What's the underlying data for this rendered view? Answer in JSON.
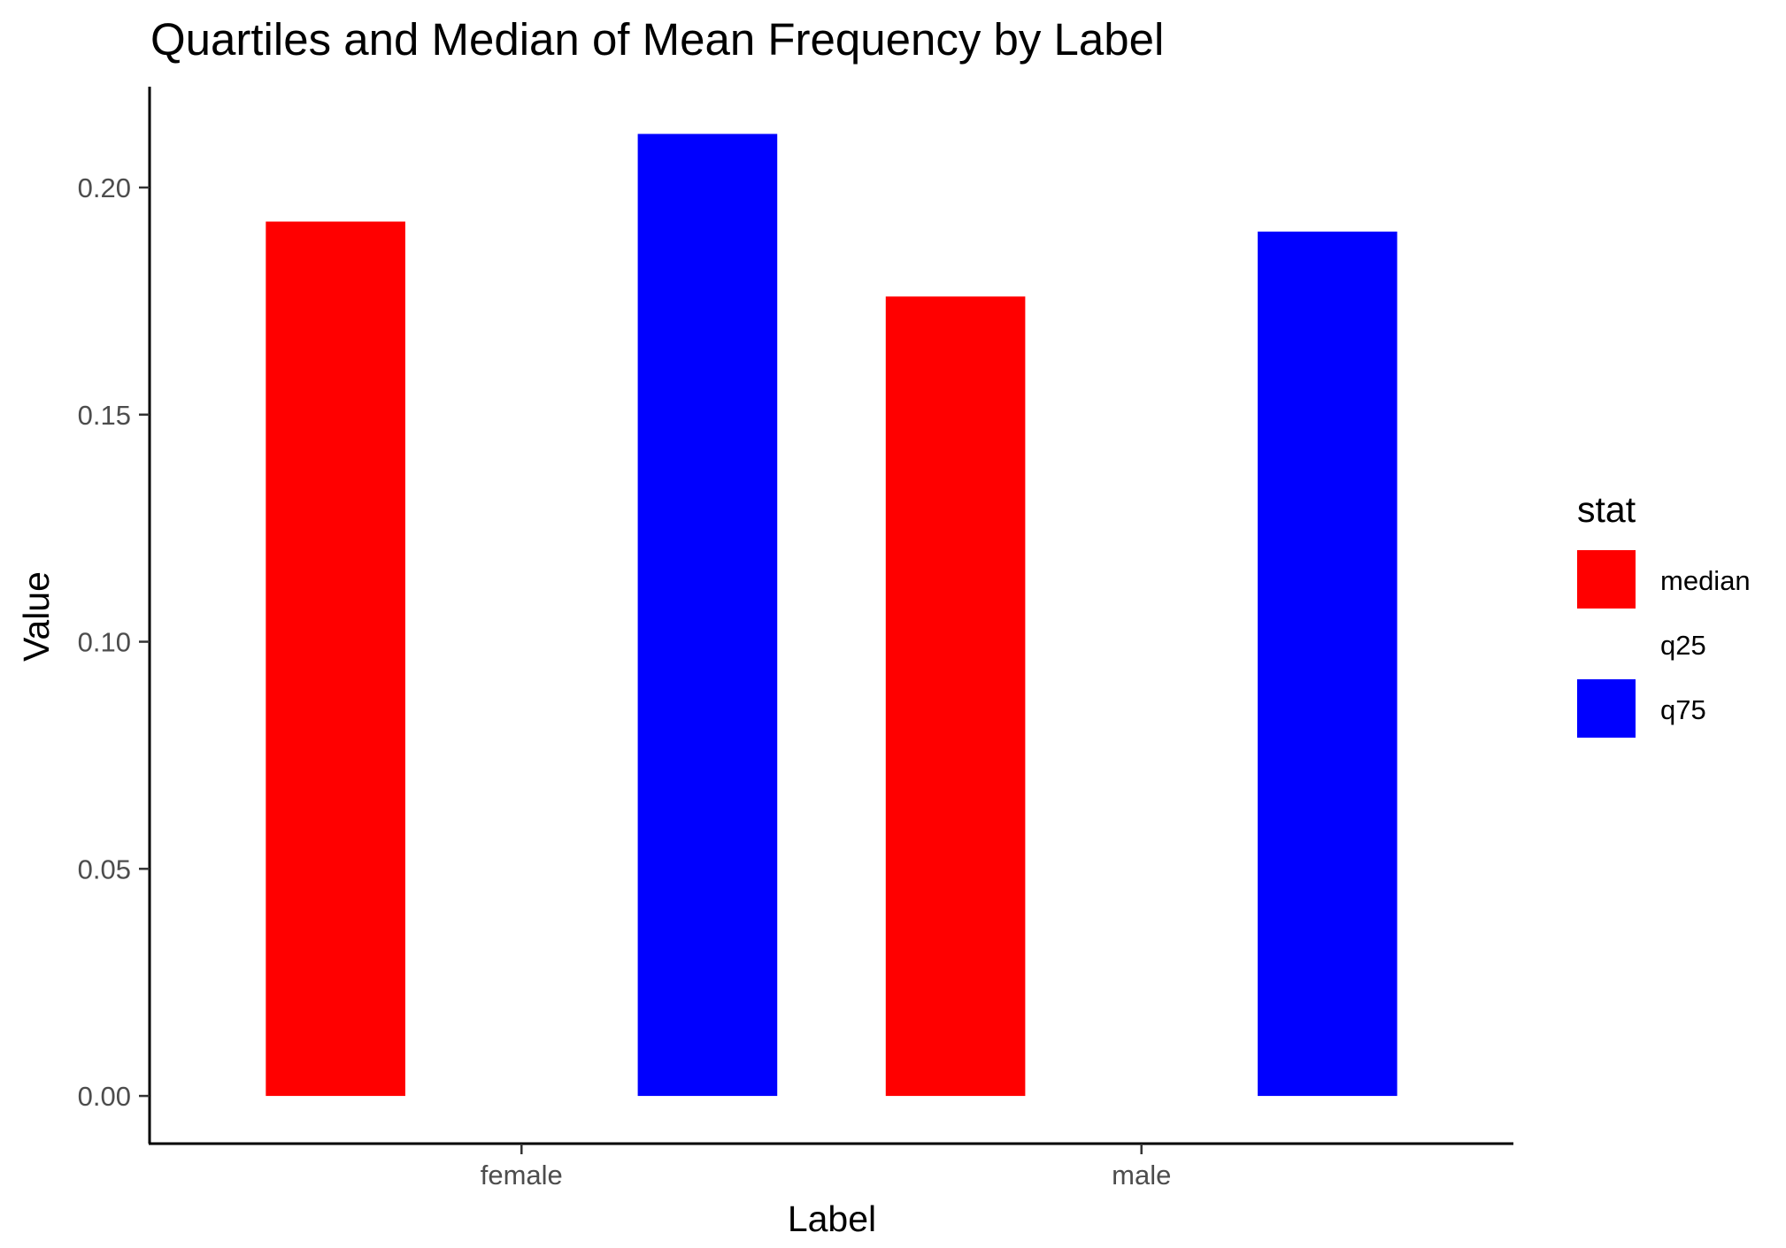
{
  "chart_data": {
    "type": "bar",
    "title": "Quartiles and Median of Mean Frequency by Label",
    "xlabel": "Label",
    "ylabel": "Value",
    "categories": [
      "female",
      "male"
    ],
    "series": [
      {
        "name": "median",
        "color": "#ff0000",
        "values": [
          0.1925,
          0.176
        ]
      },
      {
        "name": "q25",
        "color": "#ffffff",
        "values": [
          null,
          null
        ]
      },
      {
        "name": "q75",
        "color": "#0000ff",
        "values": [
          0.2118,
          0.1903
        ]
      }
    ],
    "ylim": [
      -0.0105,
      0.2222
    ],
    "yticks": [
      0.0,
      0.05,
      0.1,
      0.15,
      0.2
    ],
    "ytick_labels": [
      "0.00",
      "0.05",
      "0.10",
      "0.15",
      "0.20"
    ],
    "legend": {
      "title": "stat",
      "position": "right"
    },
    "grid": false
  }
}
